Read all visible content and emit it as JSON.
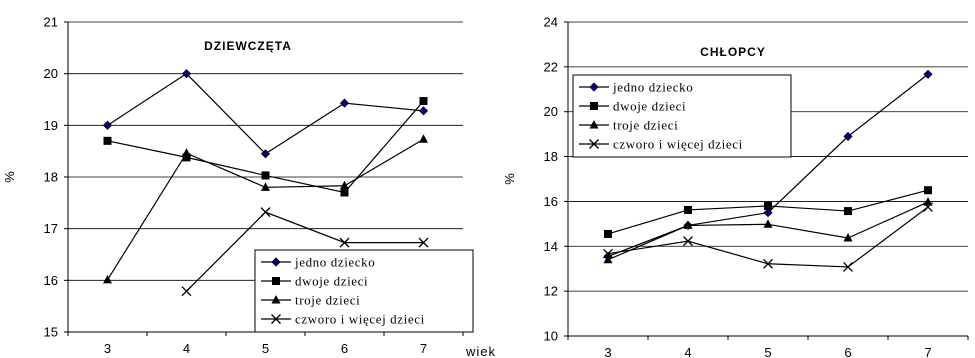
{
  "chart_data": [
    {
      "type": "line",
      "title": "DZIEWCZĘTA",
      "ylabel": "%",
      "xlabel": "wiek",
      "categories": [
        "3",
        "4",
        "5",
        "6",
        "7"
      ],
      "ylim": [
        15,
        21
      ],
      "yticks": [
        15,
        16,
        17,
        18,
        19,
        20,
        21
      ],
      "grid": true,
      "legend_position": "bottom-right",
      "series": [
        {
          "name": "jedno dziecko",
          "marker": "diamond",
          "values": [
            19.0,
            20.0,
            18.45,
            19.43,
            19.28
          ]
        },
        {
          "name": "dwoje dzieci",
          "marker": "square",
          "values": [
            18.7,
            18.38,
            18.03,
            17.7,
            19.47
          ]
        },
        {
          "name": "troje dzieci",
          "marker": "triangle",
          "values": [
            16.01,
            18.46,
            17.8,
            17.83,
            18.73
          ]
        },
        {
          "name": "czworo i więcej dzieci",
          "marker": "x",
          "values": [
            null,
            15.79,
            17.32,
            16.73,
            16.73
          ]
        }
      ]
    },
    {
      "type": "line",
      "title": "CHŁOPCY",
      "ylabel": "%",
      "xlabel": "",
      "categories": [
        "3",
        "4",
        "5",
        "6",
        "7"
      ],
      "ylim": [
        10,
        24
      ],
      "yticks": [
        10,
        12,
        14,
        16,
        18,
        20,
        22,
        24
      ],
      "grid": true,
      "legend_position": "top-left",
      "series": [
        {
          "name": "jedno dziecko",
          "marker": "diamond",
          "values": [
            13.55,
            14.93,
            15.5,
            18.9,
            21.67
          ]
        },
        {
          "name": "dwoje dzieci",
          "marker": "square",
          "values": [
            14.55,
            15.62,
            15.8,
            15.57,
            16.5
          ]
        },
        {
          "name": "troje dzieci",
          "marker": "triangle",
          "values": [
            13.4,
            14.93,
            14.98,
            14.37,
            15.97
          ]
        },
        {
          "name": "czworo i więcej dzieci",
          "marker": "x",
          "values": [
            13.67,
            14.23,
            13.22,
            13.08,
            15.75
          ]
        }
      ]
    }
  ]
}
